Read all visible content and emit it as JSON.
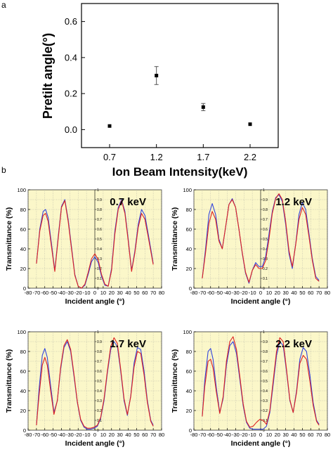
{
  "figure": {
    "panel_a_letter": "a",
    "panel_b_letter": "b"
  },
  "colors": {
    "blue_curve": "#3344dd",
    "red_curve": "#dd2222",
    "plot_background": "#fbf7c9"
  },
  "chart_data": [
    {
      "type": "scatter",
      "title": "",
      "xlabel": "Ion Beam Intensity(keV)",
      "ylabel": "Pretilt angle(°)",
      "categories": [
        "0.7",
        "1.2",
        "1.7",
        "2.2"
      ],
      "x": [
        0.7,
        1.2,
        1.7,
        2.2
      ],
      "y": [
        0.02,
        0.3,
        0.125,
        0.03
      ],
      "yerr": [
        0.0,
        0.05,
        0.02,
        0.0
      ],
      "xlim": [
        0.4,
        2.5
      ],
      "ylim": [
        -0.1,
        0.7
      ],
      "y_ticks": [
        "0.0",
        "0.2",
        "0.4",
        "0.6"
      ],
      "x_ticks": [
        "0.7",
        "1.2",
        "1.7",
        "2.2"
      ],
      "grid": false,
      "legend": "none"
    },
    {
      "type": "line",
      "label": "0.7 keV",
      "xlabel": "Incident angle (°)",
      "ylabel": "Transmittance (%)",
      "xlim": [
        -80,
        80
      ],
      "ylim": [
        0,
        100
      ],
      "x_ticks": [
        "-80",
        "-70",
        "-60",
        "-50",
        "-40",
        "-30",
        "-20",
        "-10",
        "0",
        "10",
        "20",
        "30",
        "40",
        "50",
        "60",
        "70",
        "80"
      ],
      "y_ticks": [
        "0",
        "20",
        "40",
        "60",
        "80",
        "100"
      ],
      "inner_ticks": [
        "0",
        "0.1",
        "0.2",
        "0.3",
        "0.4",
        "0.5",
        "0.6",
        "0.7",
        "0.8",
        "0.9",
        "1"
      ],
      "series": [
        {
          "color": "blue",
          "x": [
            -70,
            -66,
            -62,
            -59,
            -56,
            -52,
            -48,
            -44,
            -40,
            -36,
            -32,
            -28,
            -24,
            -20,
            -16,
            -12,
            -8,
            -4,
            0,
            4,
            8,
            12,
            16,
            20,
            24,
            28,
            32,
            36,
            40,
            44,
            48,
            52,
            56,
            60,
            64,
            68,
            70
          ],
          "y": [
            25,
            60,
            78,
            80,
            72,
            45,
            18,
            52,
            83,
            90,
            70,
            42,
            14,
            2,
            0,
            3,
            14,
            27,
            32,
            26,
            12,
            3,
            2,
            20,
            58,
            82,
            90,
            78,
            50,
            18,
            38,
            65,
            80,
            74,
            55,
            35,
            25
          ]
        },
        {
          "color": "red",
          "x": [
            -70,
            -66,
            -62,
            -59,
            -56,
            -52,
            -48,
            -44,
            -40,
            -36,
            -32,
            -28,
            -24,
            -20,
            -16,
            -12,
            -8,
            -4,
            0,
            4,
            8,
            12,
            16,
            20,
            24,
            28,
            32,
            36,
            40,
            44,
            48,
            52,
            56,
            60,
            64,
            68,
            70
          ],
          "y": [
            25,
            58,
            74,
            76,
            68,
            42,
            17,
            50,
            82,
            89,
            68,
            40,
            13,
            2,
            0,
            4,
            16,
            30,
            35,
            29,
            14,
            4,
            2,
            18,
            55,
            80,
            89,
            76,
            48,
            17,
            36,
            62,
            76,
            70,
            52,
            33,
            24
          ]
        }
      ]
    },
    {
      "type": "line",
      "label": "1.2 keV",
      "xlabel": "Incident angle (°)",
      "ylabel": "Transmittance (%)",
      "xlim": [
        -80,
        80
      ],
      "ylim": [
        0,
        100
      ],
      "x_ticks": [
        "-80",
        "-70",
        "-60",
        "-50",
        "-40",
        "-30",
        "-20",
        "-10",
        "0",
        "10",
        "20",
        "30",
        "40",
        "50",
        "60",
        "70",
        "80"
      ],
      "y_ticks": [
        "0",
        "20",
        "40",
        "60",
        "80",
        "100"
      ],
      "inner_ticks": [
        "0",
        "0.1",
        "0.2",
        "0.3",
        "0.4",
        "0.5",
        "0.6",
        "0.7",
        "0.8",
        "0.9",
        "1"
      ],
      "series": [
        {
          "color": "blue",
          "x": [
            -70,
            -66,
            -62,
            -58,
            -54,
            -50,
            -46,
            -42,
            -38,
            -34,
            -30,
            -26,
            -22,
            -18,
            -14,
            -10,
            -6,
            -2,
            2,
            6,
            10,
            14,
            18,
            22,
            26,
            30,
            34,
            38,
            42,
            46,
            50,
            54,
            58,
            62,
            66,
            70
          ],
          "y": [
            10,
            40,
            75,
            86,
            75,
            50,
            40,
            62,
            85,
            91,
            82,
            60,
            35,
            15,
            5,
            18,
            26,
            22,
            22,
            32,
            55,
            78,
            92,
            95,
            88,
            65,
            35,
            20,
            45,
            75,
            87,
            80,
            55,
            30,
            12,
            8
          ]
        },
        {
          "color": "red",
          "x": [
            -70,
            -66,
            -62,
            -58,
            -54,
            -50,
            -46,
            -42,
            -38,
            -34,
            -30,
            -26,
            -22,
            -18,
            -14,
            -10,
            -6,
            -2,
            2,
            6,
            10,
            14,
            18,
            22,
            26,
            30,
            34,
            38,
            42,
            46,
            50,
            54,
            58,
            62,
            66,
            70
          ],
          "y": [
            10,
            36,
            66,
            78,
            70,
            48,
            40,
            62,
            85,
            90,
            82,
            60,
            36,
            16,
            6,
            18,
            24,
            20,
            20,
            28,
            50,
            76,
            91,
            96,
            90,
            68,
            38,
            22,
            44,
            70,
            82,
            75,
            52,
            28,
            10,
            7
          ]
        }
      ]
    },
    {
      "type": "line",
      "label": "1.7 keV",
      "xlabel": "Incident angle (°)",
      "ylabel": "Transmittance (%)",
      "xlim": [
        -80,
        80
      ],
      "ylim": [
        0,
        100
      ],
      "x_ticks": [
        "-80",
        "-70",
        "-60",
        "-50",
        "-40",
        "-30",
        "-20",
        "-10",
        "0",
        "10",
        "20",
        "30",
        "40",
        "50",
        "60",
        "70",
        "80"
      ],
      "y_ticks": [
        "0",
        "20",
        "40",
        "60",
        "80",
        "100"
      ],
      "inner_ticks": [
        "0",
        "0.1",
        "0.2",
        "0.3",
        "0.4",
        "0.5",
        "0.6",
        "0.7",
        "0.8",
        "0.9",
        "1"
      ],
      "series": [
        {
          "color": "blue",
          "x": [
            -70,
            -67,
            -63,
            -60,
            -57,
            -53,
            -49,
            -45,
            -41,
            -37,
            -33,
            -29,
            -25,
            -21,
            -17,
            -13,
            -9,
            -5,
            -1,
            3,
            7,
            11,
            15,
            19,
            23,
            27,
            31,
            35,
            39,
            43,
            47,
            51,
            55,
            59,
            63,
            67,
            70
          ],
          "y": [
            5,
            40,
            76,
            83,
            74,
            45,
            18,
            30,
            62,
            84,
            90,
            80,
            55,
            28,
            10,
            3,
            1,
            1,
            2,
            4,
            12,
            30,
            58,
            82,
            90,
            85,
            60,
            30,
            15,
            35,
            68,
            84,
            82,
            60,
            30,
            10,
            5
          ]
        },
        {
          "color": "red",
          "x": [
            -70,
            -67,
            -63,
            -60,
            -57,
            -53,
            -49,
            -45,
            -41,
            -37,
            -33,
            -29,
            -25,
            -21,
            -17,
            -13,
            -9,
            -5,
            -1,
            3,
            7,
            11,
            15,
            19,
            23,
            27,
            31,
            35,
            39,
            43,
            47,
            51,
            55,
            59,
            63,
            67,
            70
          ],
          "y": [
            5,
            34,
            66,
            74,
            66,
            40,
            16,
            30,
            64,
            86,
            92,
            82,
            57,
            29,
            11,
            4,
            2,
            2,
            3,
            5,
            13,
            32,
            60,
            85,
            94,
            88,
            62,
            32,
            16,
            34,
            64,
            80,
            78,
            56,
            28,
            9,
            4
          ]
        }
      ]
    },
    {
      "type": "line",
      "label": "2.2 keV",
      "xlabel": "Incident angle (°)",
      "ylabel": "Transmittance (%)",
      "xlim": [
        -80,
        80
      ],
      "ylim": [
        0,
        100
      ],
      "x_ticks": [
        "-80",
        "-70",
        "-60",
        "-50",
        "-40",
        "-30",
        "-20",
        "-10",
        "0",
        "10",
        "20",
        "30",
        "40",
        "50",
        "60",
        "70",
        "80"
      ],
      "y_ticks": [
        "0",
        "20",
        "40",
        "60",
        "80",
        "100"
      ],
      "inner_ticks": [
        "0",
        "0.1",
        "0.2",
        "0.3",
        "0.4",
        "0.5",
        "0.6",
        "0.7",
        "0.8",
        "0.9",
        "1"
      ],
      "series": [
        {
          "color": "blue",
          "x": [
            -70,
            -67,
            -63,
            -60,
            -57,
            -53,
            -49,
            -45,
            -41,
            -37,
            -33,
            -29,
            -25,
            -21,
            -17,
            -13,
            -9,
            -5,
            -1,
            3,
            7,
            11,
            15,
            19,
            23,
            27,
            31,
            35,
            39,
            43,
            47,
            51,
            55,
            59,
            63,
            67,
            70
          ],
          "y": [
            14,
            50,
            80,
            83,
            72,
            42,
            18,
            32,
            66,
            86,
            90,
            78,
            52,
            25,
            8,
            2,
            1,
            1,
            1,
            1,
            4,
            18,
            46,
            76,
            90,
            86,
            60,
            30,
            18,
            40,
            72,
            84,
            80,
            56,
            28,
            10,
            6
          ]
        },
        {
          "color": "red",
          "x": [
            -70,
            -67,
            -63,
            -60,
            -57,
            -53,
            -49,
            -45,
            -41,
            -37,
            -33,
            -29,
            -25,
            -21,
            -17,
            -13,
            -9,
            -5,
            -1,
            3,
            7,
            11,
            15,
            19,
            23,
            27,
            31,
            35,
            39,
            43,
            47,
            51,
            55,
            59,
            63,
            67,
            70
          ],
          "y": [
            14,
            44,
            70,
            72,
            63,
            38,
            17,
            34,
            70,
            90,
            95,
            82,
            55,
            27,
            9,
            3,
            4,
            8,
            11,
            10,
            6,
            20,
            50,
            80,
            94,
            90,
            62,
            31,
            18,
            38,
            68,
            76,
            72,
            50,
            25,
            9,
            5
          ]
        }
      ]
    }
  ]
}
